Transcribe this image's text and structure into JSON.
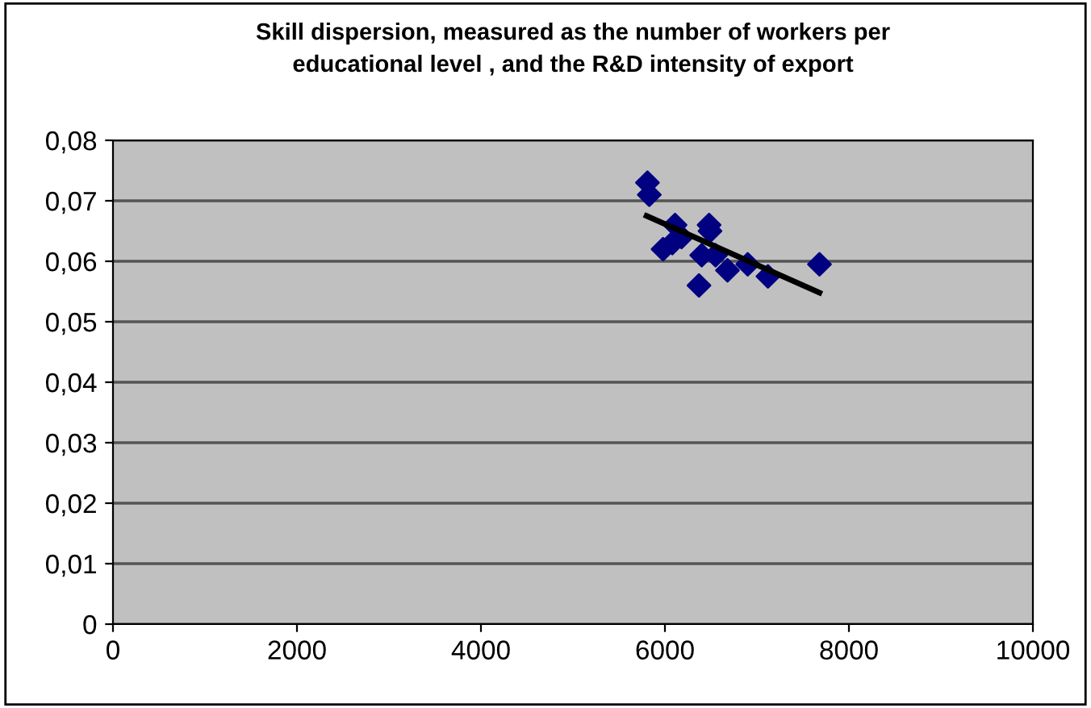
{
  "chart_data": {
    "type": "scatter",
    "title": "Skill dispersion, measured as the number of workers per educational level , and the R&D intensity of export",
    "series": [
      {
        "color": "#000080",
        "marker": "diamond",
        "x": [
          5810,
          5830,
          5980,
          6080,
          6110,
          6180,
          6370,
          6400,
          6480,
          6490,
          6550,
          6680,
          6900,
          7120,
          7680
        ],
        "values": [
          0.073,
          0.071,
          0.062,
          0.063,
          0.066,
          0.064,
          0.056,
          0.061,
          0.066,
          0.065,
          0.061,
          0.0585,
          0.0595,
          0.0575,
          0.0595
        ]
      },
      {
        "type": "line",
        "color": "#000000",
        "x": [
          5800,
          7680
        ],
        "values": [
          0.0675,
          0.0548
        ]
      }
    ],
    "xlim": [
      0,
      10000
    ],
    "xticks": [
      0,
      2000,
      4000,
      6000,
      8000,
      10000
    ],
    "ylim": [
      0,
      0.08
    ],
    "yticks": [
      {
        "value": 0,
        "label": "0"
      },
      {
        "value": 0.01,
        "label": "0,01"
      },
      {
        "value": 0.02,
        "label": "0,02"
      },
      {
        "value": 0.03,
        "label": "0,03"
      },
      {
        "value": 0.04,
        "label": "0,04"
      },
      {
        "value": 0.05,
        "label": "0,05"
      },
      {
        "value": 0.06,
        "label": "0,06"
      },
      {
        "value": 0.07,
        "label": "0,07"
      },
      {
        "value": 0.08,
        "label": "0,08"
      }
    ],
    "grid": "y",
    "legend": false
  }
}
